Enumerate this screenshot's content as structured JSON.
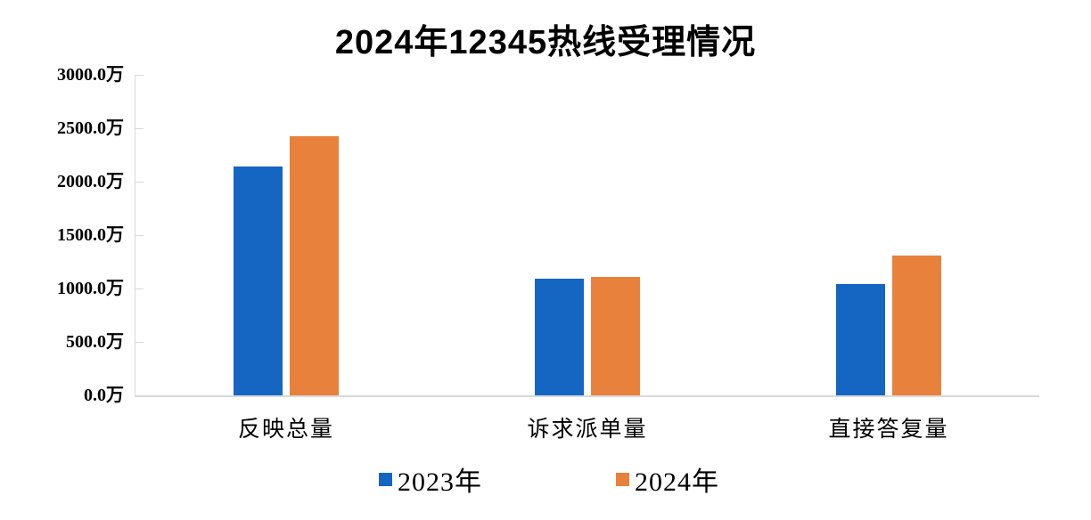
{
  "title": "2024年12345热线受理情况",
  "colors": {
    "series_2023": "#1565C2",
    "series_2024": "#E8813C",
    "axis_line": "#D9D9D9",
    "text": "#000000",
    "background": "#FFFFFF"
  },
  "chart_data": {
    "type": "bar",
    "title": "2024年12345热线受理情况",
    "unit": "万",
    "categories": [
      "反映总量",
      "诉求派单量",
      "直接答复量"
    ],
    "series": [
      {
        "name": "2023年",
        "color": "#1565C2",
        "values": [
          2145,
          1090,
          1045
        ]
      },
      {
        "name": "2024年",
        "color": "#E8813C",
        "values": [
          2425,
          1105,
          1305
        ]
      }
    ],
    "ylim": [
      0,
      3000
    ],
    "ytick_step": 500,
    "ytick_labels_top_to_bottom": [
      "3000.0万",
      "2500.0万",
      "2000.0万",
      "1500.0万",
      "1000.0万",
      "500.0万",
      "0.0万"
    ],
    "grid": false,
    "tick_direction": "inside",
    "legend_position": "bottom"
  }
}
